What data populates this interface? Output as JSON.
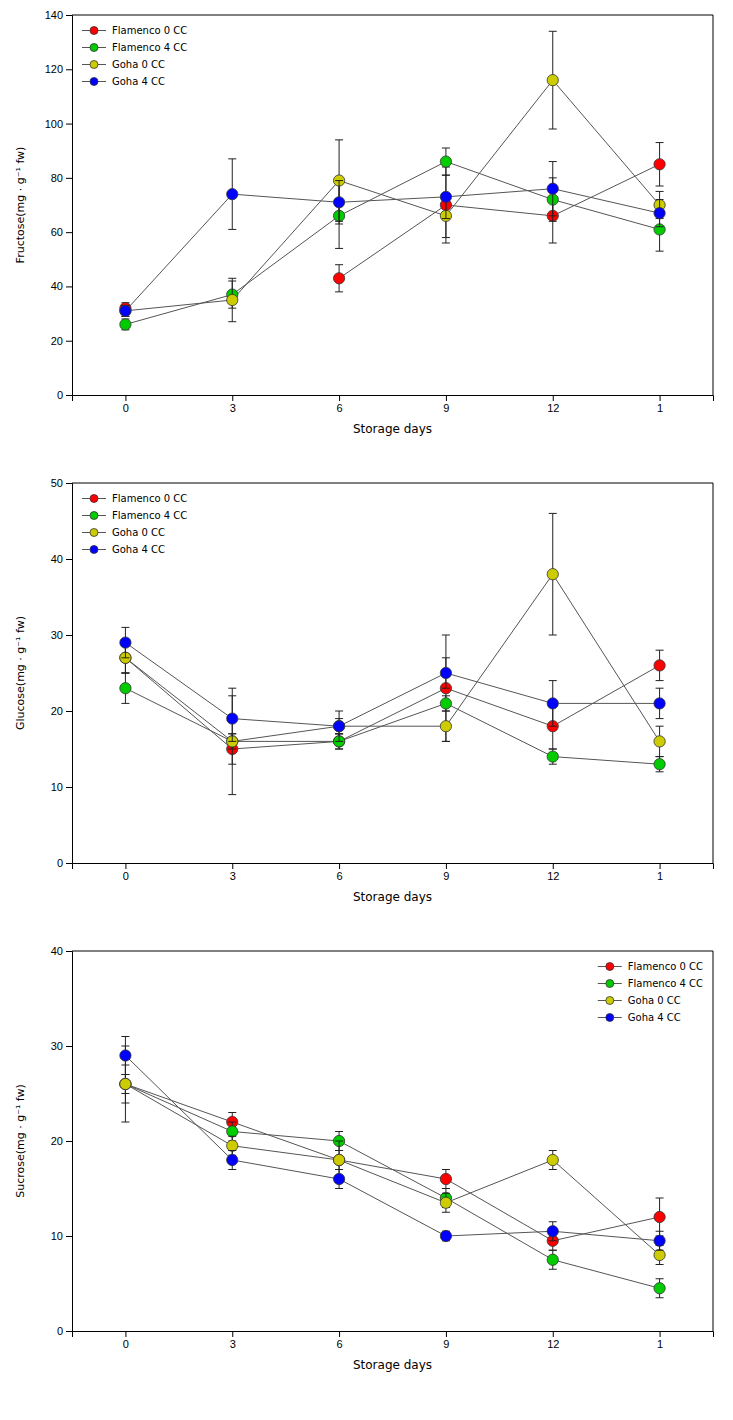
{
  "chart_data": [
    {
      "type": "line",
      "x_label": "Storage days",
      "y_label": "Fructose(mg · g⁻¹ fw)",
      "categories": [
        "0",
        "3",
        "6",
        "9",
        "12",
        "1"
      ],
      "ylim": [
        0,
        140
      ],
      "yticks": [
        0,
        20,
        40,
        60,
        80,
        100,
        120,
        140
      ],
      "legend": "upper left",
      "marker": "circle",
      "grid": false,
      "series": [
        {
          "name": "Flamenco 0 CC",
          "color": "#FF0000",
          "values": [
            32,
            null,
            43,
            70,
            66,
            85
          ],
          "errors": [
            2,
            null,
            5,
            14,
            10,
            8
          ]
        },
        {
          "name": "Flamenco 4 CC",
          "color": "#00CC00",
          "values": [
            26,
            37,
            66,
            86,
            72,
            61
          ],
          "errors": [
            2,
            5,
            12,
            5,
            8,
            8
          ]
        },
        {
          "name": "Goha 0 CC",
          "color": "#CCCC00",
          "values": [
            31,
            35,
            79,
            66,
            116,
            70
          ],
          "errors": [
            2,
            8,
            15,
            8,
            18,
            5
          ]
        },
        {
          "name": "Goha 4 CC",
          "color": "#0000FF",
          "values": [
            31,
            74,
            71,
            73,
            76,
            67
          ],
          "errors": [
            2,
            13,
            8,
            8,
            10,
            5
          ]
        }
      ]
    },
    {
      "type": "line",
      "x_label": "Storage days",
      "y_label": "Glucose(mg · g⁻¹ fw)",
      "categories": [
        "0",
        "3",
        "6",
        "9",
        "12",
        "1"
      ],
      "ylim": [
        0,
        50
      ],
      "yticks": [
        0,
        10,
        20,
        30,
        40,
        50
      ],
      "legend": "upper left",
      "marker": "circle",
      "grid": false,
      "series": [
        {
          "name": "Flamenco 0 CC",
          "color": "#FF0000",
          "values": [
            27,
            15,
            16,
            23,
            18,
            26
          ],
          "errors": [
            2,
            2,
            1,
            7,
            3,
            2
          ]
        },
        {
          "name": "Flamenco 4 CC",
          "color": "#00CC00",
          "values": [
            23,
            16,
            16,
            21,
            14,
            13
          ],
          "errors": [
            2,
            7,
            1,
            1,
            1,
            1
          ]
        },
        {
          "name": "Goha 0 CC",
          "color": "#CCCC00",
          "values": [
            27,
            16,
            18,
            18,
            38,
            16
          ],
          "errors": [
            2,
            1,
            2,
            2,
            8,
            2
          ]
        },
        {
          "name": "Goha 4 CC",
          "color": "#0000FF",
          "values": [
            29,
            19,
            18,
            25,
            21,
            21
          ],
          "errors": [
            2,
            3,
            1,
            2,
            3,
            2
          ]
        }
      ]
    },
    {
      "type": "line",
      "x_label": "Storage days",
      "y_label": "Sucrose(mg · g⁻¹ fw)",
      "categories": [
        "0",
        "3",
        "6",
        "9",
        "12",
        "1"
      ],
      "ylim": [
        0,
        40
      ],
      "yticks": [
        0,
        10,
        20,
        30,
        40
      ],
      "legend": "upper right",
      "marker": "circle",
      "grid": false,
      "series": [
        {
          "name": "Flamenco 0 CC",
          "color": "#FF0000",
          "values": [
            26,
            22,
            18,
            16,
            9.5,
            12
          ],
          "errors": [
            4,
            1,
            1,
            1,
            1,
            2
          ]
        },
        {
          "name": "Flamenco 4 CC",
          "color": "#00CC00",
          "values": [
            26,
            21,
            20,
            14,
            7.5,
            4.5
          ],
          "errors": [
            1,
            1,
            1,
            1,
            1,
            1
          ]
        },
        {
          "name": "Goha 0 CC",
          "color": "#CCCC00",
          "values": [
            26,
            19.5,
            18,
            13.5,
            18,
            8
          ],
          "errors": [
            2,
            1,
            2,
            1,
            1,
            1
          ]
        },
        {
          "name": "Goha 4 CC",
          "color": "#0000FF",
          "values": [
            29,
            18,
            16,
            10,
            10.5,
            9.5
          ],
          "errors": [
            2,
            1,
            1,
            0.5,
            1,
            1
          ]
        }
      ]
    }
  ]
}
